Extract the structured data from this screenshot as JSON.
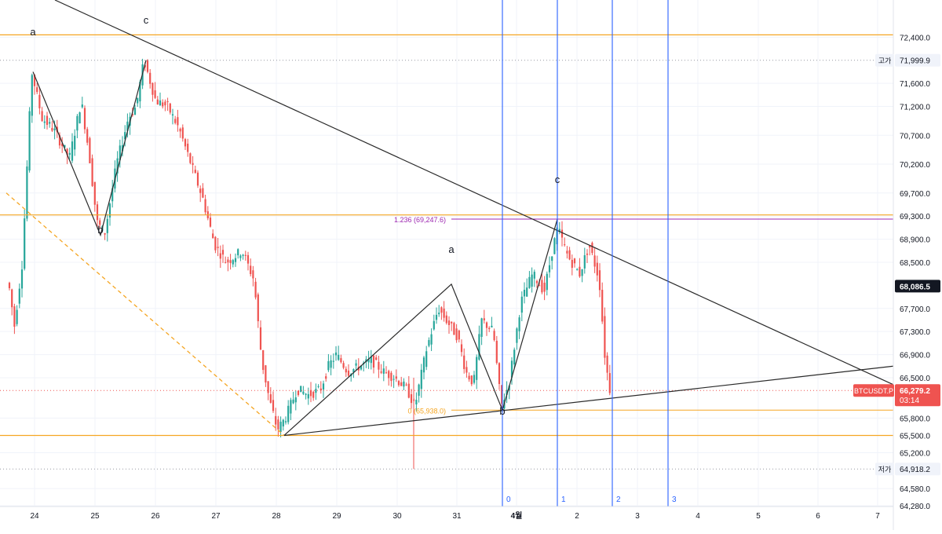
{
  "symbol": "BTCUSDT.P",
  "colors": {
    "up": "#26a69a",
    "down": "#ef5350",
    "orange": "#f5a623",
    "trend": "#2a2a2a",
    "blue": "#2962ff",
    "purple": "#9c27b0",
    "price_tag_bg": "#ef5350",
    "last_tag_bg": "#131722"
  },
  "chart_data": {
    "type": "candlestick",
    "title": "",
    "xlabel": "",
    "ylabel": "",
    "ylim": [
      64180,
      72680
    ],
    "x_tick_labels": [
      "24",
      "25",
      "26",
      "27",
      "28",
      "29",
      "30",
      "31",
      "4월",
      "2",
      "3",
      "4",
      "5",
      "6",
      "7"
    ],
    "y_tick_labels": [
      "72,400.0",
      "71,600.0",
      "71,200.0",
      "70,700.0",
      "70,200.0",
      "69,700.0",
      "69,300.0",
      "68,900.0",
      "68,500.0",
      "67,700.0",
      "67,300.0",
      "66,900.0",
      "66,500.0",
      "65,800.0",
      "65,500.0",
      "65,200.0",
      "64,580.0",
      "64,280.0"
    ],
    "grid": true,
    "price_tags": {
      "high": {
        "label": "고가",
        "value": "71,999.9"
      },
      "low": {
        "label": "저가",
        "value": "64,918.2"
      },
      "level": {
        "value": "68,086.5"
      },
      "current": {
        "symbol": "BTCUSDT.P",
        "value": "66,279.2",
        "countdown": "03:14"
      }
    },
    "horizontal_levels": [
      72440,
      69320,
      65500
    ],
    "fib_labels": {
      "upper": "1.236 (69,247.6)",
      "lower": "0 (65,938.0)"
    },
    "wave_labels": [
      "a",
      "b",
      "c",
      "a",
      "b",
      "c"
    ],
    "time_cycle_labels": [
      "0",
      "1",
      "2",
      "3"
    ]
  }
}
